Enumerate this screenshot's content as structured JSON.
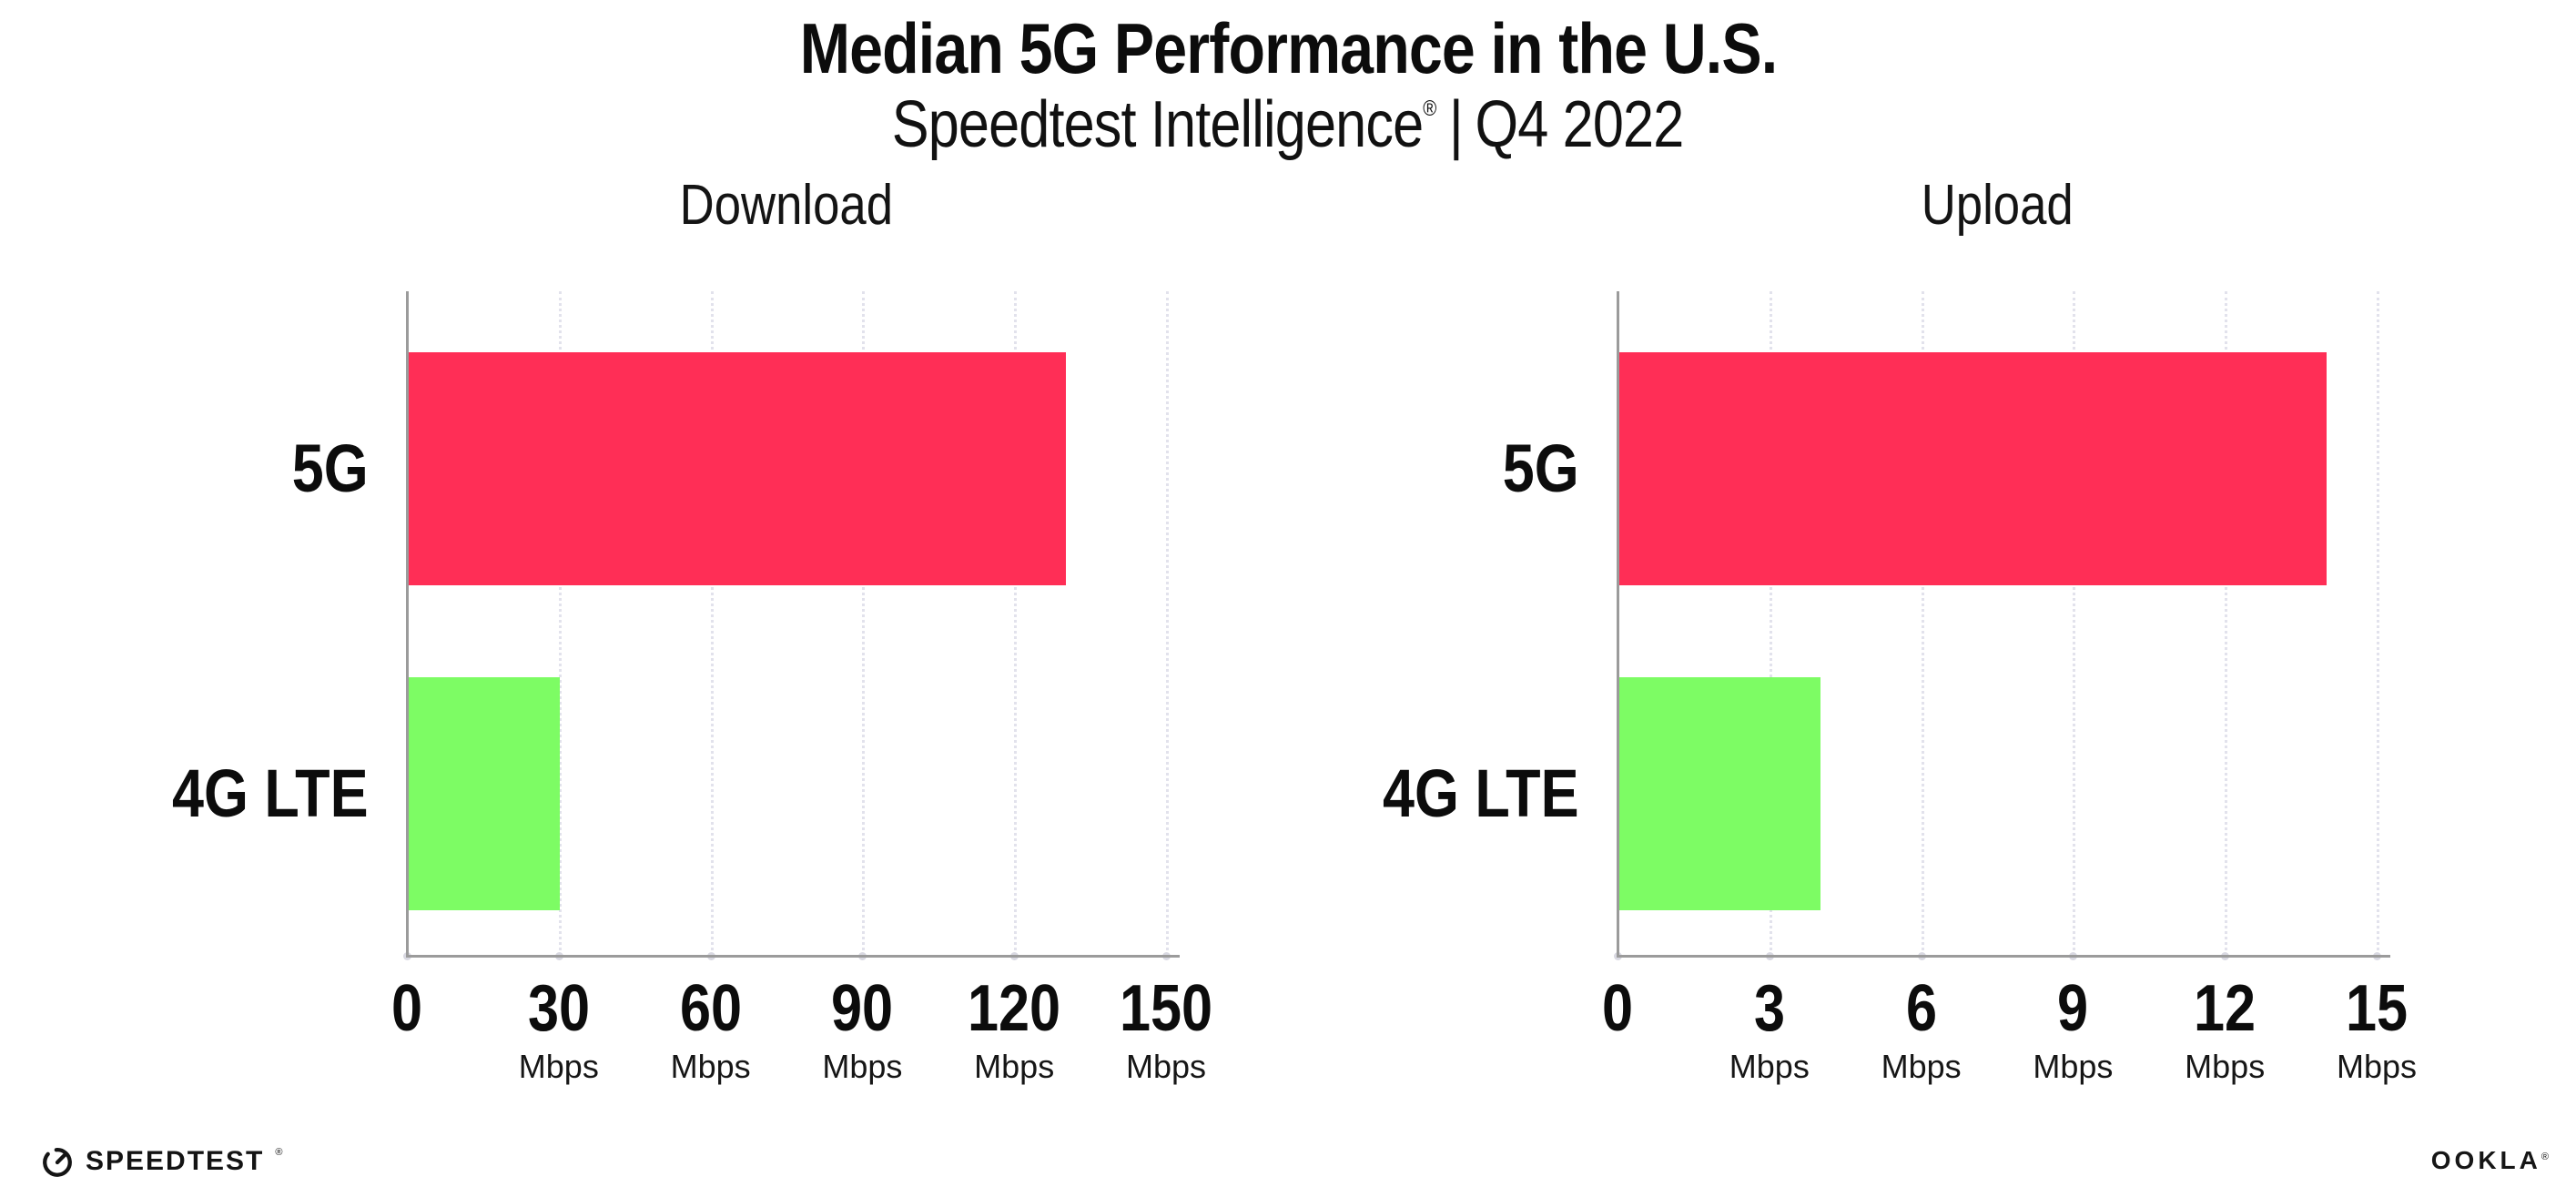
{
  "header": {
    "title": "Median 5G Performance in the U.S.",
    "subtitle_brand": "Speedtest Intelligence",
    "subtitle_reg": "®",
    "subtitle_divider": "|",
    "subtitle_period": "Q4 2022"
  },
  "colors": {
    "bar_5g": "#ff2e56",
    "bar_4g_lte": "#7dfc64",
    "grid": "#e2e2ec",
    "axis": "#9b9b9b",
    "text": "#0c0c0c",
    "background": "#ffffff"
  },
  "chart_data": [
    {
      "type": "bar",
      "orientation": "horizontal",
      "title": "Download",
      "categories": [
        "5G",
        "4G LTE"
      ],
      "values": [
        130,
        30
      ],
      "unit": "Mbps",
      "xlabel": "",
      "ylabel": "",
      "xlim": [
        0,
        150
      ],
      "xticks": [
        0,
        30,
        60,
        90,
        120,
        150
      ],
      "bar_colors": [
        "#ff2e56",
        "#7dfc64"
      ],
      "grid": "dotted-vertical",
      "legend": "none",
      "ticks": [
        {
          "label": "0",
          "sub": ""
        },
        {
          "label": "30",
          "sub": "Mbps"
        },
        {
          "label": "60",
          "sub": "Mbps"
        },
        {
          "label": "90",
          "sub": "Mbps"
        },
        {
          "label": "120",
          "sub": "Mbps"
        },
        {
          "label": "150",
          "sub": "Mbps"
        }
      ]
    },
    {
      "type": "bar",
      "orientation": "horizontal",
      "title": "Upload",
      "categories": [
        "5G",
        "4G LTE"
      ],
      "values": [
        14,
        4
      ],
      "unit": "Mbps",
      "xlabel": "",
      "ylabel": "",
      "xlim": [
        0,
        15
      ],
      "xticks": [
        0,
        3,
        6,
        9,
        12,
        15
      ],
      "bar_colors": [
        "#ff2e56",
        "#7dfc64"
      ],
      "grid": "dotted-vertical",
      "legend": "none",
      "ticks": [
        {
          "label": "0",
          "sub": ""
        },
        {
          "label": "3",
          "sub": "Mbps"
        },
        {
          "label": "6",
          "sub": "Mbps"
        },
        {
          "label": "9",
          "sub": "Mbps"
        },
        {
          "label": "12",
          "sub": "Mbps"
        },
        {
          "label": "15",
          "sub": "Mbps"
        }
      ]
    }
  ],
  "footer": {
    "speedtest_wordmark": "SPEEDTEST",
    "speedtest_mark": "®",
    "ookla_wordmark": "OOKLA",
    "ookla_mark": "®"
  }
}
